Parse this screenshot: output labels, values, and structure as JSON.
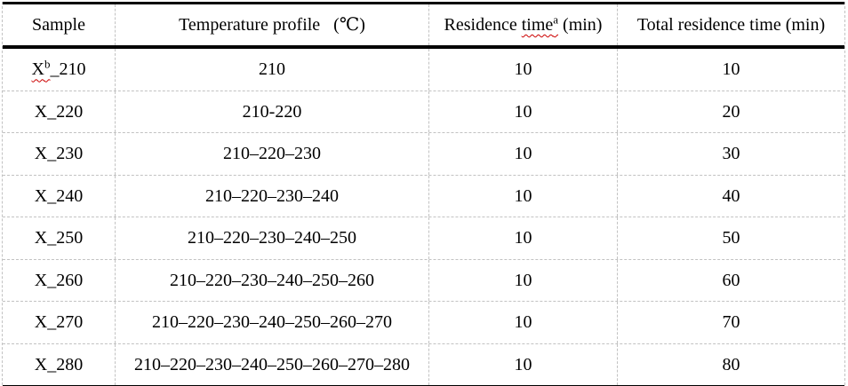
{
  "table": {
    "header": {
      "sample": "Sample",
      "temperature_profile": "Temperature profile   (℃)",
      "residence_prefix": "Residence ",
      "residence_wavy": "time",
      "residence_sup": "a",
      "residence_suffix": " (min)",
      "total": "Total residence time (min)"
    },
    "rows": [
      {
        "sample_base": "X",
        "sample_sup": "b",
        "sample_rest": "_210",
        "sample_spellcheck": true,
        "profile": "210",
        "residence": "10",
        "total": "10"
      },
      {
        "sample_base": "X",
        "sample_sup": "",
        "sample_rest": "_220",
        "sample_spellcheck": false,
        "profile": "210-220",
        "residence": "10",
        "total": "20"
      },
      {
        "sample_base": "X",
        "sample_sup": "",
        "sample_rest": "_230",
        "sample_spellcheck": false,
        "profile": "210–220–230",
        "residence": "10",
        "total": "30"
      },
      {
        "sample_base": "X",
        "sample_sup": "",
        "sample_rest": "_240",
        "sample_spellcheck": false,
        "profile": "210–220–230–240",
        "residence": "10",
        "total": "40"
      },
      {
        "sample_base": "X",
        "sample_sup": "",
        "sample_rest": "_250",
        "sample_spellcheck": false,
        "profile": "210–220–230–240–250",
        "residence": "10",
        "total": "50"
      },
      {
        "sample_base": "X",
        "sample_sup": "",
        "sample_rest": "_260",
        "sample_spellcheck": false,
        "profile": "210–220–230–240–250–260",
        "residence": "10",
        "total": "60"
      },
      {
        "sample_base": "X",
        "sample_sup": "",
        "sample_rest": "_270",
        "sample_spellcheck": false,
        "profile": "210–220–230–240–250–260–270",
        "residence": "10",
        "total": "70"
      },
      {
        "sample_base": "X",
        "sample_sup": "",
        "sample_rest": "_280",
        "sample_spellcheck": false,
        "profile": "210–220–230–240–250–260–270–280",
        "residence": "10",
        "total": "80"
      }
    ]
  },
  "colors": {
    "rule": "#000000",
    "gridline": "#c2c2c2",
    "spellcheck": "#cc0000",
    "text": "#000000"
  }
}
